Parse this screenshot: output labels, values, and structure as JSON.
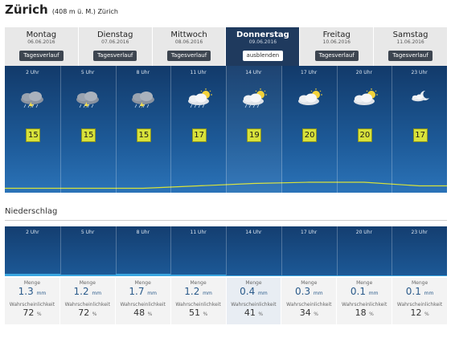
{
  "header": {
    "city": "Zürich",
    "elevation": "(408 m ü. M.) Zürich"
  },
  "days": [
    {
      "name": "Montag",
      "date": "06.06.2016",
      "button": "Tagesverlauf",
      "active": false
    },
    {
      "name": "Dienstag",
      "date": "07.06.2016",
      "button": "Tagesverlauf",
      "active": false
    },
    {
      "name": "Mittwoch",
      "date": "08.06.2016",
      "button": "Tagesverlauf",
      "active": false
    },
    {
      "name": "Donnerstag",
      "date": "09.06.2016",
      "button": "ausblenden",
      "active": true
    },
    {
      "name": "Freitag",
      "date": "10.06.2016",
      "button": "Tagesverlauf",
      "active": false
    },
    {
      "name": "Samstag",
      "date": "11.06.2016",
      "button": "Tagesverlauf",
      "active": false
    }
  ],
  "hours": [
    {
      "time": "2 Uhr",
      "temp": "15",
      "icon": "thunderstorm-icon"
    },
    {
      "time": "5 Uhr",
      "temp": "15",
      "icon": "thunderstorm-icon"
    },
    {
      "time": "8 Uhr",
      "temp": "15",
      "icon": "thunderstorm-icon"
    },
    {
      "time": "11 Uhr",
      "temp": "17",
      "icon": "sun-cloud-rain-icon"
    },
    {
      "time": "14 Uhr",
      "temp": "19",
      "icon": "sun-cloud-rain-icon"
    },
    {
      "time": "17 Uhr",
      "temp": "20",
      "icon": "sun-cloud-icon"
    },
    {
      "time": "20 Uhr",
      "temp": "20",
      "icon": "sun-cloud-icon"
    },
    {
      "time": "23 Uhr",
      "temp": "17",
      "icon": "moon-cloud-icon"
    }
  ],
  "precipitation": {
    "title": "Niederschlag",
    "menge_label": "Menge",
    "prob_label": "Wahrscheinlichkeit",
    "unit_mm": "mm",
    "unit_pct": "%",
    "values": [
      {
        "time": "2 Uhr",
        "amount": "1.3",
        "prob": "72"
      },
      {
        "time": "5 Uhr",
        "amount": "1.2",
        "prob": "72"
      },
      {
        "time": "8 Uhr",
        "amount": "1.7",
        "prob": "48"
      },
      {
        "time": "11 Uhr",
        "amount": "1.2",
        "prob": "51"
      },
      {
        "time": "14 Uhr",
        "amount": "0.4",
        "prob": "41"
      },
      {
        "time": "17 Uhr",
        "amount": "0.3",
        "prob": "34"
      },
      {
        "time": "20 Uhr",
        "amount": "0.1",
        "prob": "18"
      },
      {
        "time": "23 Uhr",
        "amount": "0.1",
        "prob": "12"
      }
    ]
  },
  "colors": {
    "accent": "#1f3a5e",
    "temp_badge": "#d8e23a",
    "curve": "#d8e23a",
    "rain_bar": "#3aa6e0"
  }
}
